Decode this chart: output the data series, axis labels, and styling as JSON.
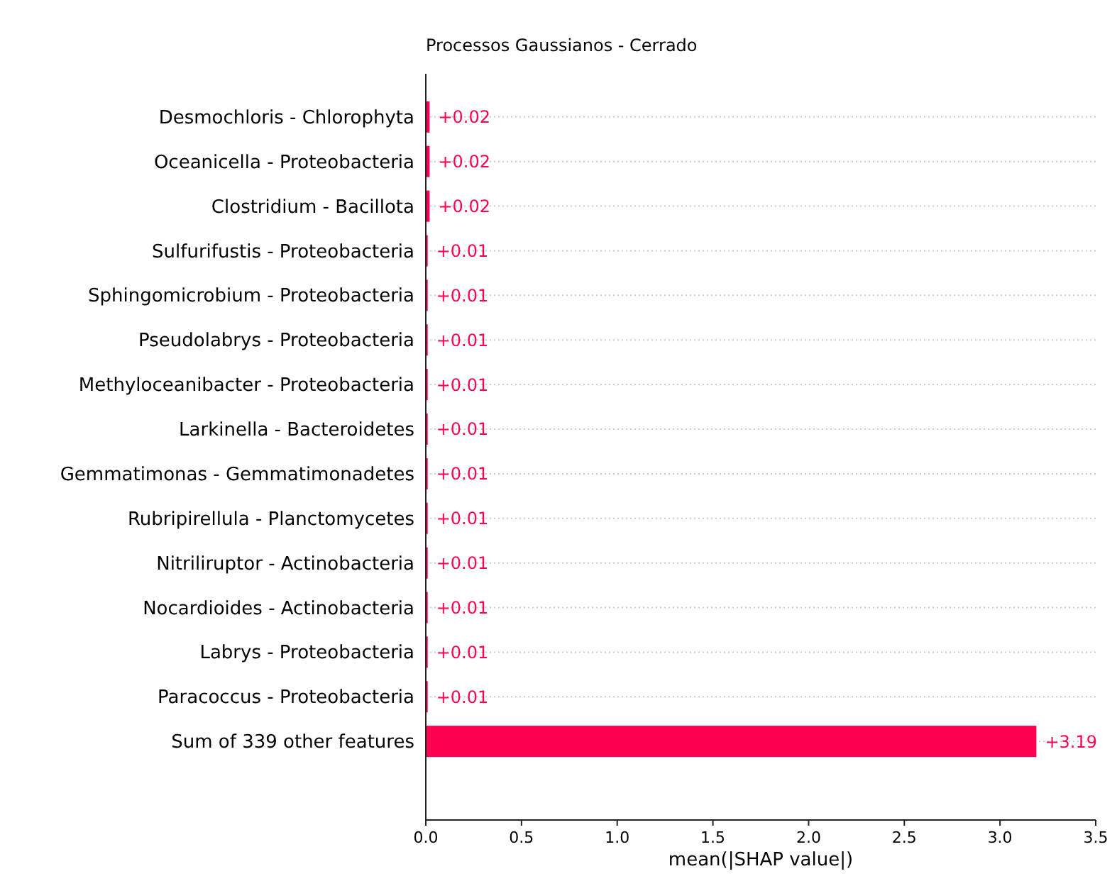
{
  "chart_data": {
    "type": "bar",
    "orientation": "horizontal",
    "title": "Processos Gaussianos - Cerrado",
    "xlabel": "mean(|SHAP value|)",
    "categories": [
      "Desmochloris - Chlorophyta",
      "Oceanicella - Proteobacteria",
      "Clostridium - Bacillota",
      "Sulfurifustis - Proteobacteria",
      "Sphingomicrobium - Proteobacteria",
      "Pseudolabrys - Proteobacteria",
      "Methyloceanibacter - Proteobacteria",
      "Larkinella - Bacteroidetes",
      "Gemmatimonas - Gemmatimonadetes",
      "Rubripirellula - Planctomycetes",
      "Nitriliruptor - Actinobacteria",
      "Nocardioides - Actinobacteria",
      "Labrys - Proteobacteria",
      "Paracoccus - Proteobacteria",
      "Sum of 339 other features"
    ],
    "values": [
      0.02,
      0.02,
      0.02,
      0.01,
      0.01,
      0.01,
      0.01,
      0.01,
      0.01,
      0.01,
      0.01,
      0.01,
      0.01,
      0.01,
      3.19
    ],
    "value_labels": [
      "+0.02",
      "+0.02",
      "+0.02",
      "+0.01",
      "+0.01",
      "+0.01",
      "+0.01",
      "+0.01",
      "+0.01",
      "+0.01",
      "+0.01",
      "+0.01",
      "+0.01",
      "+0.01",
      "+3.19"
    ],
    "color": "#ff0051",
    "xlim": [
      0,
      3.5
    ],
    "xticks": [
      {
        "value": 0,
        "label": "0.0"
      },
      {
        "value": 0.5,
        "label": "0.5"
      },
      {
        "value": 1,
        "label": "1.0"
      },
      {
        "value": 1.5,
        "label": "1.5"
      },
      {
        "value": 2,
        "label": "2.0"
      },
      {
        "value": 2.5,
        "label": "2.5"
      },
      {
        "value": 3,
        "label": "3.0"
      },
      {
        "value": 3.5,
        "label": "3.5"
      }
    ],
    "grid": "y"
  }
}
